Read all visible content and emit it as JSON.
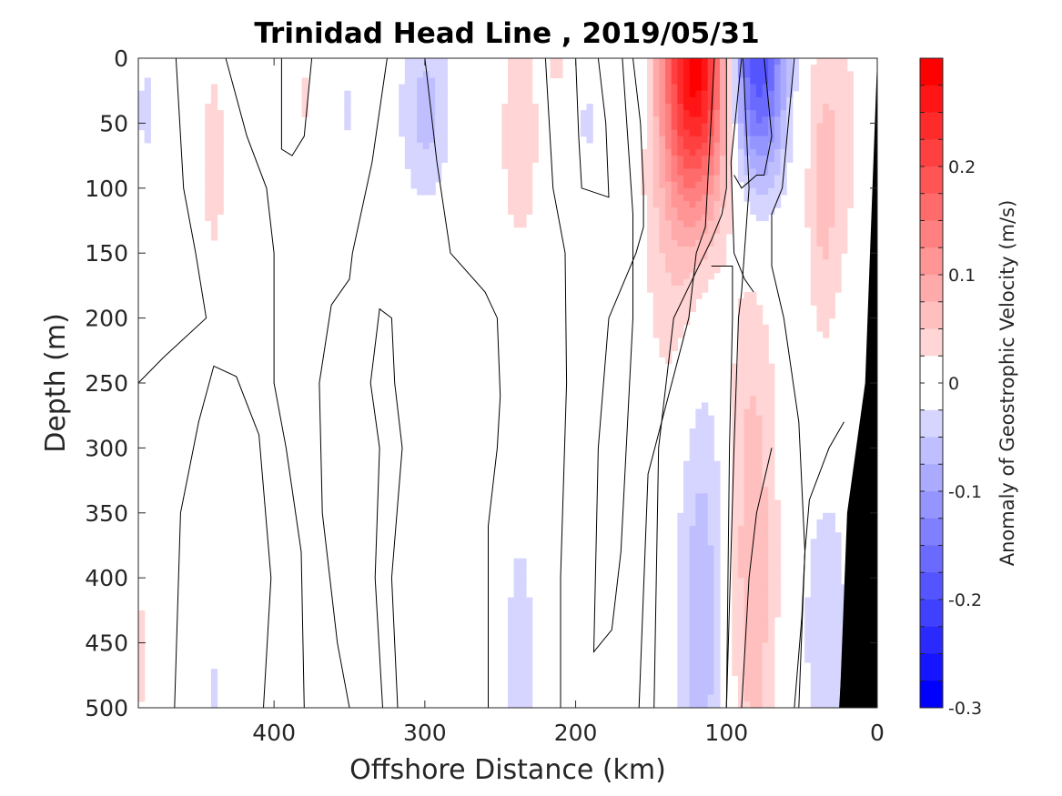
{
  "chart_data": {
    "type": "heatmap",
    "title": "Trinidad Head Line , 2019/05/31",
    "xlabel": "Offshore Distance (km)",
    "ylabel": "Depth (m)",
    "xlim": [
      490,
      0
    ],
    "ylim": [
      0,
      500
    ],
    "x_reversed": true,
    "y_reversed": true,
    "x_ticks": [
      400,
      300,
      200,
      100,
      0
    ],
    "y_ticks": [
      0,
      50,
      100,
      150,
      200,
      250,
      300,
      350,
      400,
      450,
      500
    ],
    "colorbar": {
      "label": "Anomaly of Geostrophic Velocity (m/s)",
      "range": [
        -0.3,
        0.3
      ],
      "ticks": [
        -0.3,
        -0.2,
        -0.1,
        0,
        0.1,
        0.2
      ],
      "tick_labels": [
        "-0.3",
        "-0.2",
        "-0.1",
        "0",
        "0.1",
        "0.2"
      ],
      "levels": 24,
      "negative_color": "#0000ff",
      "positive_color": "#ff0000"
    },
    "anomaly_features": [
      {
        "x_center": 120,
        "x_width": 16,
        "depth_center": 0,
        "depth_width": 80,
        "value": 0.28
      },
      {
        "x_center": 80,
        "x_width": 14,
        "depth_center": 0,
        "depth_width": 70,
        "value": -0.21
      },
      {
        "x_center": 128,
        "x_width": 18,
        "depth_center": 160,
        "depth_width": 120,
        "value": 0.05
      },
      {
        "x_center": 117,
        "x_width": 13,
        "depth_center": 400,
        "depth_width": 190,
        "value": -0.07
      },
      {
        "x_center": 83,
        "x_width": 12,
        "depth_center": 390,
        "depth_width": 160,
        "value": 0.07
      },
      {
        "x_center": 237,
        "x_width": 9,
        "depth_center": 60,
        "depth_width": 60,
        "value": 0.05
      },
      {
        "x_center": 237,
        "x_width": 8,
        "depth_center": 470,
        "depth_width": 90,
        "value": -0.04
      },
      {
        "x_center": 300,
        "x_width": 12,
        "depth_center": 40,
        "depth_width": 50,
        "value": -0.06
      },
      {
        "x_center": 440,
        "x_width": 6,
        "depth_center": 80,
        "depth_width": 60,
        "value": 0.04
      },
      {
        "x_center": 485,
        "x_width": 6,
        "depth_center": 40,
        "depth_width": 45,
        "value": -0.03
      },
      {
        "x_center": 487,
        "x_width": 5,
        "depth_center": 460,
        "depth_width": 60,
        "value": 0.03
      },
      {
        "x_center": 440,
        "x_width": 5,
        "depth_center": 490,
        "depth_width": 35,
        "value": -0.03
      },
      {
        "x_center": 30,
        "x_width": 15,
        "depth_center": 60,
        "depth_width": 90,
        "value": 0.04
      },
      {
        "x_center": 36,
        "x_width": 7,
        "depth_center": 130,
        "depth_width": 80,
        "value": 0.03
      },
      {
        "x_center": 34,
        "x_width": 11,
        "depth_center": 440,
        "depth_width": 80,
        "value": -0.05
      },
      {
        "x_center": 163,
        "x_width": 8,
        "depth_center": 10,
        "depth_width": 40,
        "value": -0.03
      },
      {
        "x_center": 192,
        "x_width": 6,
        "depth_center": 50,
        "depth_width": 30,
        "value": -0.03
      },
      {
        "x_center": 212,
        "x_width": 5,
        "depth_center": 5,
        "depth_width": 20,
        "value": 0.03
      },
      {
        "x_center": 350,
        "x_width": 4,
        "depth_center": 40,
        "depth_width": 30,
        "value": -0.03
      },
      {
        "x_center": 380,
        "x_width": 4,
        "depth_center": 30,
        "depth_width": 25,
        "value": 0.03
      }
    ],
    "zero_contours": [
      [
        [
          465,
          0
        ],
        [
          460,
          100
        ],
        [
          452,
          150
        ],
        [
          445,
          200
        ],
        [
          473,
          230
        ],
        [
          490,
          250
        ]
      ],
      [
        [
          432,
          0
        ],
        [
          418,
          60
        ],
        [
          405,
          100
        ],
        [
          400,
          150
        ],
        [
          400,
          250
        ],
        [
          392,
          300
        ],
        [
          382,
          380
        ],
        [
          380,
          500
        ]
      ],
      [
        [
          375,
          0
        ],
        [
          380,
          60
        ],
        [
          388,
          75
        ],
        [
          395,
          70
        ],
        [
          395,
          0
        ]
      ],
      [
        [
          466,
          500
        ],
        [
          462,
          350
        ],
        [
          450,
          280
        ],
        [
          440,
          237
        ],
        [
          425,
          245
        ],
        [
          410,
          290
        ],
        [
          402,
          400
        ],
        [
          407,
          500
        ]
      ],
      [
        [
          325,
          0
        ],
        [
          335,
          80
        ],
        [
          348,
          150
        ],
        [
          350,
          170
        ],
        [
          362,
          190
        ],
        [
          370,
          250
        ],
        [
          368,
          350
        ],
        [
          358,
          450
        ],
        [
          350,
          500
        ]
      ],
      [
        [
          318,
          500
        ],
        [
          322,
          400
        ],
        [
          315,
          300
        ],
        [
          320,
          250
        ],
        [
          322,
          200
        ],
        [
          330,
          193
        ],
        [
          336,
          250
        ],
        [
          330,
          300
        ],
        [
          333,
          400
        ],
        [
          328,
          500
        ]
      ],
      [
        [
          300,
          0
        ],
        [
          292,
          80
        ],
        [
          283,
          150
        ],
        [
          260,
          180
        ],
        [
          252,
          200
        ],
        [
          250,
          260
        ],
        [
          252,
          300
        ],
        [
          258,
          360
        ],
        [
          258,
          500
        ]
      ],
      [
        [
          200,
          0
        ],
        [
          198,
          60
        ],
        [
          196,
          100
        ],
        [
          178,
          107
        ],
        [
          180,
          50
        ],
        [
          185,
          0
        ]
      ],
      [
        [
          210,
          500
        ],
        [
          210,
          400
        ],
        [
          206,
          250
        ],
        [
          207,
          150
        ],
        [
          215,
          100
        ],
        [
          220,
          0
        ]
      ],
      [
        [
          162,
          0
        ],
        [
          157,
          50
        ],
        [
          155,
          100
        ],
        [
          155,
          130
        ],
        [
          160,
          150
        ],
        [
          178,
          200
        ],
        [
          185,
          300
        ],
        [
          188,
          457
        ],
        [
          176,
          440
        ],
        [
          170,
          380
        ],
        [
          162,
          200
        ],
        [
          162,
          120
        ],
        [
          169,
          0
        ]
      ],
      [
        [
          158,
          500
        ],
        [
          152,
          320
        ],
        [
          125,
          200
        ],
        [
          120,
          150
        ],
        [
          114,
          130
        ],
        [
          108,
          0
        ]
      ],
      [
        [
          100,
          0
        ],
        [
          100,
          100
        ],
        [
          103,
          120
        ],
        [
          110,
          140
        ],
        [
          135,
          200
        ],
        [
          145,
          300
        ],
        [
          148,
          500
        ]
      ],
      [
        [
          100,
          500
        ],
        [
          98,
          300
        ],
        [
          96,
          200
        ],
        [
          96,
          160
        ],
        [
          110,
          160
        ]
      ],
      [
        [
          89,
          0
        ],
        [
          85,
          100
        ],
        [
          90,
          180
        ],
        [
          92,
          200
        ],
        [
          95,
          300
        ],
        [
          100,
          500
        ]
      ],
      [
        [
          90,
          0
        ],
        [
          97,
          80
        ],
        [
          95,
          150
        ],
        [
          88,
          170
        ],
        [
          82,
          180
        ]
      ],
      [
        [
          55,
          0
        ],
        [
          63,
          100
        ],
        [
          70,
          120
        ],
        [
          70,
          160
        ],
        [
          62,
          200
        ],
        [
          52,
          280
        ],
        [
          48,
          380
        ],
        [
          52,
          500
        ]
      ],
      [
        [
          75,
          0
        ],
        [
          70,
          60
        ],
        [
          75,
          90
        ],
        [
          80,
          90
        ],
        [
          90,
          100
        ],
        [
          95,
          90
        ]
      ],
      [
        [
          90,
          500
        ],
        [
          85,
          400
        ],
        [
          80,
          350
        ],
        [
          70,
          300
        ]
      ],
      [
        [
          55,
          500
        ],
        [
          50,
          430
        ],
        [
          48,
          380
        ],
        [
          45,
          340
        ],
        [
          32,
          300
        ],
        [
          22,
          280
        ]
      ],
      [
        [
          25,
          500
        ],
        [
          20,
          400
        ],
        [
          18,
          350
        ],
        [
          10,
          300
        ]
      ]
    ],
    "bathymetry": {
      "label": "seafloor",
      "color": "#000000",
      "points": [
        [
          25,
          500
        ],
        [
          20,
          350
        ],
        [
          14,
          300
        ],
        [
          8,
          250
        ],
        [
          0,
          0
        ],
        [
          0,
          500
        ]
      ]
    }
  }
}
